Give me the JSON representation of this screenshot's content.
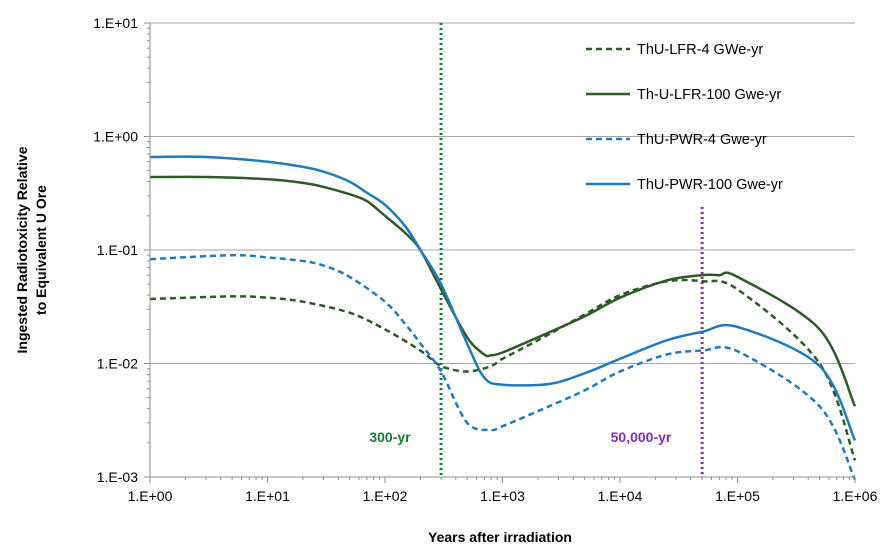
{
  "chart_data": {
    "type": "line",
    "xlabel": "Years after irradiation",
    "ylabel_lines": [
      "Ingested  Radiotoxicity Relative",
      "to Equivalent U Ore"
    ],
    "x_scale": "log",
    "y_scale": "log",
    "xlim": [
      1,
      1000000
    ],
    "ylim": [
      0.001,
      10
    ],
    "x_ticks": [
      1,
      10,
      100,
      1000,
      10000,
      100000,
      1000000
    ],
    "x_tick_labels": [
      "1.E+00",
      "1.E+01",
      "1.E+02",
      "1.E+03",
      "1.E+04",
      "1.E+05",
      "1.E+06"
    ],
    "y_ticks": [
      0.001,
      0.01,
      0.1,
      1,
      10
    ],
    "y_tick_labels": [
      "1.E-03",
      "1.E-02",
      "1.E-01",
      "1.E+00",
      "1.E+01"
    ],
    "grid": "horizontal",
    "legend_position": "top-right",
    "series": [
      {
        "name": "ThU-LFR-4 GWe-yr",
        "color": "#2e5a27",
        "dash": "dashed",
        "x": [
          1,
          5,
          10,
          20,
          50,
          100,
          200,
          300,
          500,
          800,
          1000,
          2000,
          5000,
          10000,
          25000,
          50000,
          100000,
          500000,
          1000000
        ],
        "y": [
          0.037,
          0.039,
          0.038,
          0.035,
          0.028,
          0.02,
          0.013,
          0.0095,
          0.0085,
          0.0095,
          0.011,
          0.016,
          0.027,
          0.04,
          0.053,
          0.053,
          0.045,
          0.01,
          0.0014
        ]
      },
      {
        "name": "Th-U-LFR-100 Gwe-yr",
        "color": "#2e5a27",
        "dash": "solid",
        "x": [
          1,
          3,
          10,
          20,
          30,
          50,
          70,
          100,
          150,
          200,
          300,
          500,
          700,
          800,
          1000,
          2000,
          5000,
          10000,
          25000,
          50000,
          70000,
          100000,
          500000,
          1000000
        ],
        "y": [
          0.44,
          0.44,
          0.42,
          0.39,
          0.36,
          0.31,
          0.27,
          0.2,
          0.14,
          0.1,
          0.045,
          0.017,
          0.012,
          0.0118,
          0.0125,
          0.017,
          0.026,
          0.038,
          0.054,
          0.06,
          0.06,
          0.058,
          0.02,
          0.0042
        ]
      },
      {
        "name": "ThU-PWR-4 Gwe-yr",
        "color": "#1f7ac0",
        "dash": "dashed",
        "x": [
          1,
          5,
          10,
          20,
          30,
          50,
          100,
          150,
          200,
          300,
          500,
          800,
          1000,
          2000,
          5000,
          10000,
          25000,
          50000,
          100000,
          500000,
          1000000
        ],
        "y": [
          0.083,
          0.09,
          0.086,
          0.08,
          0.073,
          0.058,
          0.035,
          0.022,
          0.015,
          0.0085,
          0.003,
          0.0026,
          0.0028,
          0.0038,
          0.0058,
          0.0085,
          0.012,
          0.013,
          0.0128,
          0.0042,
          0.00095
        ]
      },
      {
        "name": "ThU-PWR-100 Gwe-yr",
        "color": "#1f7ac0",
        "dash": "solid",
        "x": [
          1,
          3,
          10,
          20,
          30,
          50,
          70,
          100,
          150,
          200,
          300,
          500,
          700,
          1000,
          2500,
          5000,
          10000,
          25000,
          50000,
          100000,
          500000,
          1000000
        ],
        "y": [
          0.66,
          0.66,
          0.6,
          0.54,
          0.49,
          0.4,
          0.32,
          0.25,
          0.16,
          0.1,
          0.05,
          0.015,
          0.0075,
          0.0065,
          0.0066,
          0.0082,
          0.011,
          0.016,
          0.019,
          0.021,
          0.0095,
          0.0021
        ]
      }
    ],
    "annotations": [
      {
        "label": "300-yr",
        "x": 300,
        "color": "#1a7a3a"
      },
      {
        "label": "50,000-yr",
        "x": 50000,
        "color": "#7a32b0"
      }
    ]
  }
}
